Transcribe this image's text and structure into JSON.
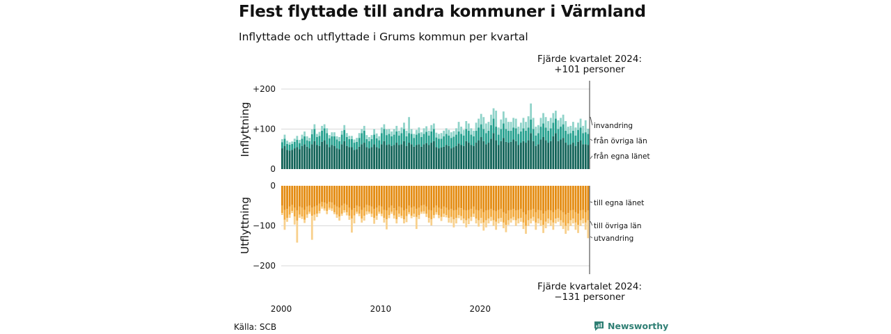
{
  "title": "Flest flyttade till andra kommuner i Värmland",
  "subtitle": "Inflyttade och utflyttade i Grums kommun per kvartal",
  "source": "Källa: SCB",
  "brand": "Newsworthy",
  "colors": {
    "in_egna": "#116358",
    "in_ovriga": "#24a08e",
    "in_invandring": "#8fd3c9",
    "out_egna": "#e48b10",
    "out_ovriga": "#f2a93b",
    "out_utvandring": "#f8d08c",
    "grid": "#d8d8d8",
    "brand": "#2f7f74"
  },
  "annotations": {
    "top": [
      "Fjärde kvartalet 2024:",
      "+101 personer"
    ],
    "bottom": [
      "Fjärde kvartalet 2024:",
      "−131 personer"
    ]
  },
  "chart_data": {
    "type": "bar",
    "stacked": true,
    "x_start": 2000,
    "x_ticks": [
      "2000",
      "2010",
      "2020"
    ],
    "panels": [
      {
        "name": "inflyttning",
        "ylabel": "Inflyttning",
        "y_ticks": [
          "+200",
          "+100",
          "0"
        ],
        "ylim": [
          0,
          220
        ],
        "series": [
          {
            "name": "från egna länet",
            "values": [
              52,
              58,
              48,
              46,
              48,
              52,
              55,
              50,
              58,
              62,
              56,
              52,
              62,
              70,
              60,
              58,
              68,
              72,
              62,
              55,
              60,
              58,
              52,
              50,
              62,
              70,
              58,
              55,
              55,
              48,
              50,
              56,
              62,
              66,
              55,
              52,
              55,
              62,
              55,
              52,
              62,
              70,
              60,
              62,
              58,
              60,
              66,
              60,
              62,
              70,
              58,
              66,
              62,
              56,
              60,
              62,
              56,
              62,
              65,
              60,
              66,
              70,
              55,
              52,
              54,
              56,
              60,
              58,
              52,
              55,
              58,
              64,
              60,
              58,
              70,
              66,
              60,
              58,
              66,
              72,
              80,
              70,
              62,
              66,
              76,
              90,
              72,
              60,
              70,
              78,
              68,
              66,
              68,
              74,
              70,
              60,
              66,
              70,
              66,
              72,
              90,
              70,
              58,
              62,
              74,
              80,
              72,
              66,
              70,
              82,
              90,
              70,
              74,
              78,
              66,
              60,
              62,
              66,
              58,
              68,
              72,
              62,
              62,
              60
            ]
          },
          {
            "name": "från övriga län",
            "values": [
              15,
              18,
              15,
              15,
              15,
              16,
              18,
              15,
              18,
              20,
              16,
              18,
              25,
              30,
              20,
              25,
              28,
              30,
              28,
              22,
              22,
              24,
              22,
              20,
              24,
              28,
              22,
              20,
              20,
              18,
              18,
              22,
              28,
              30,
              20,
              18,
              20,
              24,
              22,
              20,
              28,
              30,
              25,
              26,
              24,
              26,
              28,
              24,
              28,
              30,
              24,
              24,
              26,
              22,
              26,
              28,
              24,
              26,
              28,
              24,
              28,
              30,
              24,
              24,
              22,
              26,
              28,
              26,
              26,
              26,
              28,
              30,
              28,
              26,
              30,
              30,
              26,
              24,
              30,
              32,
              32,
              30,
              28,
              30,
              34,
              36,
              34,
              26,
              30,
              36,
              32,
              30,
              28,
              30,
              32,
              28,
              28,
              32,
              30,
              32,
              34,
              30,
              26,
              28,
              32,
              34,
              32,
              30,
              32,
              34,
              36,
              30,
              32,
              34,
              30,
              28,
              28,
              30,
              26,
              30,
              32,
              28,
              30,
              28
            ]
          },
          {
            "name": "invandring",
            "values": [
              8,
              10,
              8,
              6,
              6,
              8,
              10,
              8,
              10,
              12,
              10,
              8,
              12,
              12,
              8,
              10,
              12,
              10,
              12,
              8,
              10,
              10,
              8,
              10,
              10,
              12,
              10,
              8,
              8,
              8,
              10,
              12,
              10,
              12,
              10,
              10,
              10,
              14,
              12,
              10,
              14,
              12,
              14,
              12,
              12,
              14,
              14,
              12,
              14,
              16,
              14,
              40,
              12,
              10,
              12,
              14,
              12,
              14,
              14,
              12,
              16,
              14,
              12,
              12,
              14,
              14,
              14,
              14,
              14,
              14,
              16,
              24,
              18,
              14,
              20,
              18,
              16,
              14,
              20,
              22,
              26,
              30,
              24,
              22,
              26,
              26,
              40,
              18,
              24,
              30,
              28,
              22,
              22,
              24,
              24,
              18,
              22,
              26,
              22,
              28,
              40,
              28,
              22,
              20,
              22,
              26,
              26,
              24,
              26,
              24,
              20,
              22,
              22,
              24,
              24,
              18,
              18,
              22,
              20,
              18,
              22,
              18,
              30,
              13
            ]
          }
        ]
      },
      {
        "name": "utflyttning",
        "ylabel": "Utflyttning",
        "y_ticks": [
          "0",
          "−100",
          "−200"
        ],
        "ylim": [
          -220,
          0
        ],
        "series": [
          {
            "name": "till egna länet",
            "values": [
              -50,
              -60,
              -58,
              -52,
              -48,
              -55,
              -62,
              -52,
              -55,
              -60,
              -52,
              -50,
              -55,
              -52,
              -50,
              -45,
              -40,
              -42,
              -45,
              -40,
              -42,
              -48,
              -52,
              -55,
              -50,
              -45,
              -48,
              -55,
              -60,
              -56,
              -50,
              -52,
              -60,
              -55,
              -48,
              -50,
              -52,
              -58,
              -55,
              -50,
              -52,
              -60,
              -62,
              -55,
              -50,
              -56,
              -62,
              -52,
              -55,
              -62,
              -58,
              -50,
              -55,
              -52,
              -58,
              -55,
              -50,
              -48,
              -52,
              -60,
              -62,
              -55,
              -50,
              -55,
              -58,
              -52,
              -55,
              -60,
              -58,
              -62,
              -60,
              -55,
              -56,
              -60,
              -62,
              -60,
              -58,
              -52,
              -60,
              -62,
              -58,
              -66,
              -62,
              -60,
              -58,
              -62,
              -64,
              -60,
              -58,
              -66,
              -70,
              -62,
              -60,
              -58,
              -62,
              -60,
              -58,
              -66,
              -72,
              -62,
              -60,
              -58,
              -66,
              -60,
              -62,
              -70,
              -64,
              -60,
              -62,
              -66,
              -60,
              -58,
              -62,
              -66,
              -72,
              -68,
              -62,
              -60,
              -66,
              -70,
              -62,
              -60,
              -66,
              -62
            ]
          },
          {
            "name": "till övriga län",
            "values": [
              -18,
              -25,
              -22,
              -20,
              -15,
              -22,
              -25,
              -20,
              -22,
              -25,
              -20,
              -15,
              -20,
              -20,
              -20,
              -18,
              -12,
              -15,
              -18,
              -15,
              -15,
              -18,
              -20,
              -22,
              -20,
              -16,
              -18,
              -20,
              -22,
              -18,
              -15,
              -18,
              -22,
              -20,
              -16,
              -15,
              -18,
              -22,
              -20,
              -15,
              -18,
              -20,
              -22,
              -18,
              -15,
              -18,
              -22,
              -18,
              -20,
              -22,
              -18,
              -16,
              -20,
              -18,
              -20,
              -18,
              -15,
              -16,
              -18,
              -20,
              -22,
              -18,
              -16,
              -18,
              -20,
              -18,
              -18,
              -20,
              -20,
              -22,
              -20,
              -18,
              -20,
              -22,
              -24,
              -22,
              -20,
              -18,
              -22,
              -24,
              -22,
              -26,
              -24,
              -22,
              -20,
              -24,
              -26,
              -22,
              -22,
              -26,
              -28,
              -24,
              -22,
              -20,
              -24,
              -22,
              -22,
              -26,
              -28,
              -24,
              -22,
              -20,
              -26,
              -22,
              -24,
              -28,
              -26,
              -22,
              -24,
              -26,
              -22,
              -22,
              -24,
              -26,
              -28,
              -26,
              -24,
              -22,
              -26,
              -28,
              -24,
              -22,
              -26,
              -24
            ]
          },
          {
            "name": "utvandring",
            "values": [
              -5,
              -25,
              -10,
              -8,
              -5,
              -20,
              -55,
              -8,
              -6,
              -8,
              -8,
              -5,
              -60,
              -15,
              -8,
              -6,
              -5,
              -5,
              -8,
              -5,
              -6,
              -5,
              -8,
              -10,
              -5,
              -6,
              -8,
              -10,
              -35,
              -20,
              -5,
              -6,
              -10,
              -12,
              -8,
              -5,
              -8,
              -15,
              -10,
              -5,
              -6,
              -12,
              -25,
              -8,
              -5,
              -8,
              -10,
              -8,
              -6,
              -10,
              -15,
              -5,
              -6,
              -8,
              -30,
              -10,
              -5,
              -6,
              -8,
              -12,
              -15,
              -8,
              -6,
              -8,
              -10,
              -8,
              -6,
              -12,
              -15,
              -20,
              -14,
              -8,
              -10,
              -12,
              -18,
              -14,
              -10,
              -8,
              -12,
              -16,
              -14,
              -20,
              -18,
              -12,
              -10,
              -14,
              -20,
              -12,
              -10,
              -14,
              -18,
              -12,
              -10,
              -8,
              -14,
              -12,
              -10,
              -16,
              -20,
              -14,
              -12,
              -10,
              -18,
              -12,
              -14,
              -20,
              -16,
              -12,
              -14,
              -18,
              -12,
              -10,
              -14,
              -16,
              -20,
              -18,
              -14,
              -12,
              -18,
              -20,
              -14,
              -12,
              -18,
              -45
            ]
          }
        ]
      }
    ]
  }
}
